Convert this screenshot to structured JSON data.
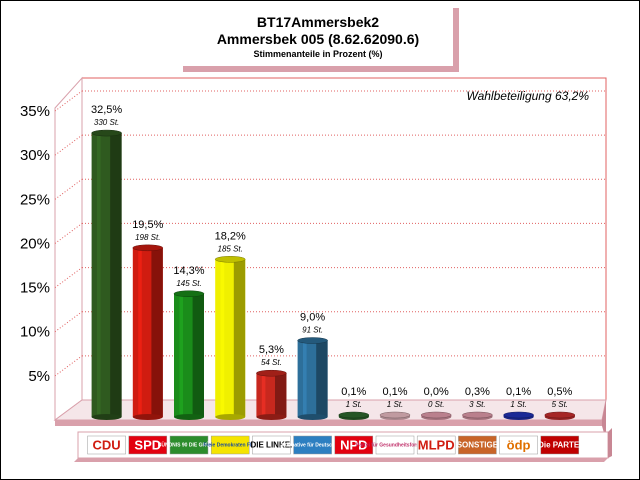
{
  "title": "BT17Ammersbek2",
  "subtitle": "Ammersbek 005 (8.62.62090.6)",
  "caption": "Stimmenanteile in Prozent (%)",
  "turnout_label": "Wahlbeteiligung 63,2%",
  "colors": {
    "frame_pink": "#d9a0ab",
    "grid_red": "#e06060"
  },
  "chart_data": {
    "type": "bar",
    "title": "BT17Ammersbek2",
    "subtitle": "Ammersbek 005 (8.62.62090.6)",
    "ylabel": "Stimmenanteile in Prozent (%)",
    "ylim": [
      0,
      35
    ],
    "yticks": [
      "5%",
      "10%",
      "15%",
      "20%",
      "25%",
      "30%",
      "35%"
    ],
    "grid": true,
    "categories": [
      "CDU",
      "SPD",
      "GRÜNE",
      "FDP",
      "DIE LINKE",
      "AfD",
      "NPD",
      "Partei für Gesundheitsforschung",
      "MLPD",
      "SONSTIGE",
      "ödp",
      "Die PARTEI"
    ],
    "values": [
      32.5,
      19.5,
      14.3,
      18.2,
      5.3,
      9.0,
      0.1,
      0.1,
      0.0,
      0.3,
      0.1,
      0.5
    ],
    "value_labels": [
      "32,5%",
      "19,5%",
      "14,3%",
      "18,2%",
      "5,3%",
      "9,0%",
      "0,1%",
      "0,1%",
      "0,0%",
      "0,3%",
      "0,1%",
      "0,5%"
    ],
    "votes": [
      "330 St.",
      "198 St.",
      "145 St.",
      "185 St.",
      "54 St.",
      "91 St.",
      "1 St.",
      "1 St.",
      "0 St.",
      "3 St.",
      "1 St.",
      "5 St."
    ],
    "bar_colors": [
      "#2f5a1f",
      "#d01c10",
      "#1a8c1a",
      "#f0f000",
      "#c8281e",
      "#2d6f9a",
      "#2f6b2f",
      "#f0c0c8",
      "#e8a0b0",
      "#e8a0b0",
      "#2233bb",
      "#d03030"
    ],
    "logos": [
      {
        "text": "CDU",
        "bg": "#ffffff",
        "fg": "#d01c10"
      },
      {
        "text": "SPD",
        "bg": "#e3000f",
        "fg": "#ffffff"
      },
      {
        "text": "BÜNDNIS 90 DIE GRÜNEN",
        "bg": "#2c8c2c",
        "fg": "#ffffff"
      },
      {
        "text": "Freie Demokraten FDP",
        "bg": "#f5e400",
        "fg": "#1a4c9a"
      },
      {
        "text": "DIE LINKE.",
        "bg": "#ffffff",
        "fg": "#000000"
      },
      {
        "text": "Alternative für Deutschland",
        "bg": "#2d7fc1",
        "fg": "#ffffff"
      },
      {
        "text": "NPD",
        "bg": "#e3000f",
        "fg": "#ffffff"
      },
      {
        "text": "Partei für Gesundheitsforschung",
        "bg": "#ffffff",
        "fg": "#c0306a"
      },
      {
        "text": "MLPD",
        "bg": "#ffffff",
        "fg": "#d01c10"
      },
      {
        "text": "SONSTIGE",
        "bg": "#c86428",
        "fg": "#ffffff"
      },
      {
        "text": "ödp",
        "bg": "#ffffff",
        "fg": "#e07000"
      },
      {
        "text": "Die PARTEI",
        "bg": "#c00000",
        "fg": "#ffffff"
      }
    ]
  }
}
